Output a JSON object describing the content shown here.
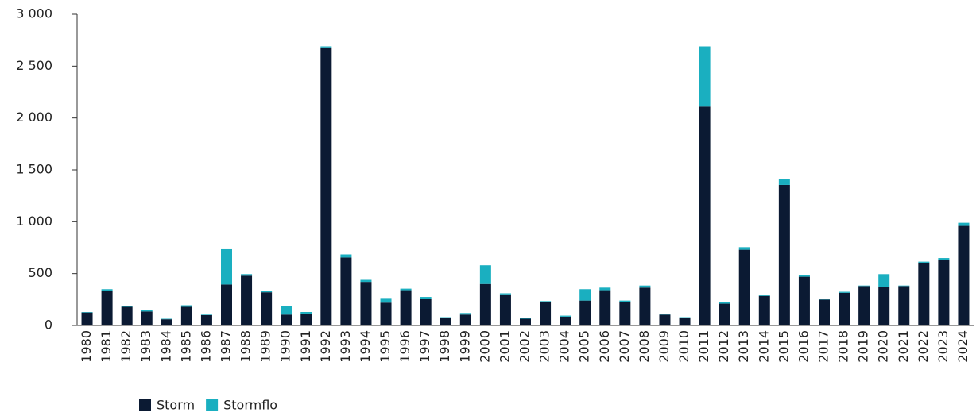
{
  "chart_data": {
    "type": "stacked_bar",
    "categories": [
      "1980",
      "1981",
      "1982",
      "1983",
      "1984",
      "1985",
      "1986",
      "1987",
      "1988",
      "1989",
      "1990",
      "1991",
      "1992",
      "1993",
      "1994",
      "1995",
      "1996",
      "1997",
      "1998",
      "1999",
      "2000",
      "2001",
      "2002",
      "2003",
      "2004",
      "2005",
      "2006",
      "2007",
      "2008",
      "2009",
      "2010",
      "2011",
      "2012",
      "2013",
      "2014",
      "2015",
      "2016",
      "2017",
      "2018",
      "2019",
      "2020",
      "2021",
      "2022",
      "2023",
      "2024"
    ],
    "series": [
      {
        "name": "Storm",
        "color": "#0b1a33",
        "values": [
          125,
          335,
          180,
          135,
          60,
          180,
          100,
          395,
          480,
          320,
          105,
          115,
          2680,
          655,
          420,
          220,
          340,
          260,
          75,
          105,
          400,
          300,
          65,
          230,
          85,
          240,
          340,
          225,
          365,
          105,
          75,
          2110,
          210,
          730,
          285,
          1355,
          470,
          250,
          315,
          380,
          375,
          380,
          605,
          630,
          960
        ]
      },
      {
        "name": "Stormflo",
        "color": "#1aafc0",
        "values": [
          5,
          15,
          10,
          15,
          5,
          15,
          5,
          340,
          15,
          15,
          85,
          15,
          10,
          30,
          20,
          45,
          15,
          15,
          5,
          15,
          180,
          10,
          5,
          5,
          10,
          110,
          25,
          15,
          20,
          5,
          5,
          580,
          15,
          25,
          10,
          60,
          15,
          5,
          10,
          5,
          120,
          5,
          10,
          20,
          30
        ]
      }
    ],
    "ylim": [
      0,
      3000
    ],
    "yticks": [
      0,
      500,
      {
        "value": 1000,
        "label": "1 000"
      },
      {
        "value": 1500,
        "label": "1 500"
      },
      {
        "value": 2000,
        "label": "2 000"
      },
      {
        "value": 2500,
        "label": "2 500"
      },
      {
        "value": 3000,
        "label": "3 000"
      }
    ]
  }
}
